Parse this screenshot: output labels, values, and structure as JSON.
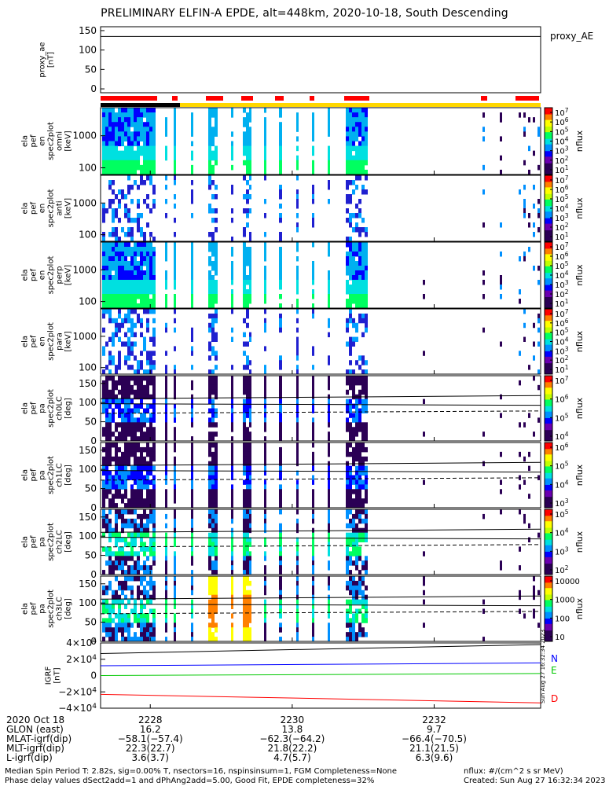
{
  "title": "PRELIMINARY ELFIN-A EPDE, alt=448km, 2020-10-18, South Descending",
  "side_stamp": "Sun Aug 27 16:32:34 2023",
  "colors": {
    "red_bar": "#ff0000",
    "yellow_bar": "#ffd700",
    "N": "#0000ff",
    "E": "#00c800",
    "D": "#ff0000",
    "colorscale": [
      "#ffffff",
      "#000000",
      "#2b0055",
      "#6a00b0",
      "#0000ff",
      "#0090ff",
      "#00e0e0",
      "#00ff60",
      "#c0ff00",
      "#ffff00",
      "#ff8000",
      "#ff0000"
    ]
  },
  "chart_data": [
    {
      "type": "line",
      "panel": "proxy_ae",
      "ylabel": "proxy_ae\n[nT]",
      "legend": "proxy_AE",
      "yticks": [
        "150",
        "100",
        "50",
        "0"
      ],
      "ylim": [
        -10,
        160
      ],
      "x": [
        "2227.3",
        "2229.0",
        "2233.5"
      ],
      "values": [
        135,
        135,
        135
      ]
    },
    {
      "type": "heatmap",
      "panel": "spec2plot_omni",
      "ylabel": "ela\npef\nen\nspec2plot\nomni\n[keV]",
      "yticks": [
        "1000",
        "100"
      ],
      "colorbar": {
        "ticks": [
          "10^7",
          "10^6",
          "10^5",
          "10^4",
          "10^3",
          "10^2",
          "10^1"
        ],
        "label": "nflux"
      }
    },
    {
      "type": "heatmap",
      "panel": "spec2plot_anti",
      "ylabel": "ela\npef\nen\nspec2plot\nanti\n[keV]",
      "yticks": [
        "1000",
        "100"
      ],
      "colorbar": {
        "ticks": [
          "10^7",
          "10^6",
          "10^5",
          "10^4",
          "10^3",
          "10^2",
          "10^1"
        ],
        "label": "nflux"
      }
    },
    {
      "type": "heatmap",
      "panel": "spec2plot_perp",
      "ylabel": "ela\npef\nen\nspec2plot\nperp\n[keV]",
      "yticks": [
        "1000",
        "100"
      ],
      "colorbar": {
        "ticks": [
          "10^7",
          "10^6",
          "10^5",
          "10^4",
          "10^3",
          "10^2",
          "10^1"
        ],
        "label": "nflux"
      }
    },
    {
      "type": "heatmap",
      "panel": "spec2plot_para",
      "ylabel": "ela\npef\nen\nspec2plot\npara\n[keV]",
      "yticks": [
        "1000",
        "100"
      ],
      "colorbar": {
        "ticks": [
          "10^7",
          "10^6",
          "10^5",
          "10^4",
          "10^3",
          "10^2",
          "10^1"
        ],
        "label": "nflux"
      }
    },
    {
      "type": "heatmap",
      "panel": "spec2plot_ch0LC",
      "ylabel": "ela\npef\npa\nspec2plot\nch0LC\n[deg]",
      "yticks": [
        "150",
        "100",
        "50",
        "0"
      ],
      "colorbar": {
        "ticks": [
          "10^7",
          "10^6",
          "10^5",
          "10^4"
        ],
        "label": "nflux"
      }
    },
    {
      "type": "heatmap",
      "panel": "spec2plot_ch1LC",
      "ylabel": "ela\npef\npa\nspec2plot\nch1LC\n[deg]",
      "yticks": [
        "150",
        "100",
        "50",
        "0"
      ],
      "colorbar": {
        "ticks": [
          "10^6",
          "10^5",
          "10^4",
          "10^3"
        ],
        "label": "nflux"
      }
    },
    {
      "type": "heatmap",
      "panel": "spec2plot_ch2LC",
      "ylabel": "ela\npef\npa\nspec2plot\nch2LC\n[deg]",
      "yticks": [
        "150",
        "100",
        "50",
        "0"
      ],
      "colorbar": {
        "ticks": [
          "10^5",
          "10^4",
          "10^3",
          "10^2"
        ],
        "label": "nflux"
      }
    },
    {
      "type": "heatmap",
      "panel": "spec2plot_ch3LC",
      "ylabel": "ela\npef\npa\nspec2plot\nch3LC\n[deg]",
      "yticks": [
        "150",
        "100",
        "50",
        "0"
      ],
      "colorbar": {
        "ticks": [
          "10000",
          "1000",
          "100",
          "10"
        ],
        "label": "nflux"
      }
    },
    {
      "type": "line",
      "panel": "IGRF",
      "ylabel": "IGRF\n[nT]",
      "yticks": [
        "4×10^4",
        "2×10^4",
        "0",
        "−2×10^4",
        "−4×10^4"
      ],
      "ylim": [
        -40000,
        40000
      ],
      "x": [
        "2227.3",
        "2233.5"
      ],
      "series": [
        {
          "name": "N",
          "color": "#0000ff",
          "values": [
            12000,
            15500
          ]
        },
        {
          "name": "E",
          "color": "#00c800",
          "values": [
            0,
            2500
          ]
        },
        {
          "name": "D",
          "color": "#ff0000",
          "values": [
            -23000,
            -33500
          ]
        },
        {
          "name": "",
          "color": "#000000",
          "values": [
            27000,
            38000
          ]
        }
      ]
    }
  ],
  "time_axis": {
    "date_label": "2020 Oct 18",
    "ticks": [
      "2228",
      "2230",
      "2232"
    ],
    "rows": [
      {
        "label": "GLON (east)",
        "values": [
          "16.2",
          "13.8",
          "9.7"
        ]
      },
      {
        "label": "MLAT-igrf(dip)",
        "values": [
          "−58.1(−57.4)",
          "−62.3(−64.2)",
          "−66.4(−70.5)"
        ]
      },
      {
        "label": "MLT-igrf(dip)",
        "values": [
          "22.3(22.7)",
          "21.8(22.2)",
          "21.1(21.5)"
        ]
      },
      {
        "label": "L-igrf(dip)",
        "values": [
          "3.6(3.7)",
          "4.7(5.7)",
          "6.3(9.6)"
        ]
      }
    ]
  },
  "footer": {
    "left1": "Median Spin Period T: 2.82s, sig=0.00% T, nsectors=16, nspinsinsum=1, FGM Completeness=None",
    "left2": "Phase delay values dSect2add=1 and dPhAng2add=5.00, Good Fit, EPDE completeness=32%",
    "right1": "nflux: #/(cm^2 s sr MeV)",
    "right2": "Created: Sun Aug 27 16:32:34 2023"
  }
}
